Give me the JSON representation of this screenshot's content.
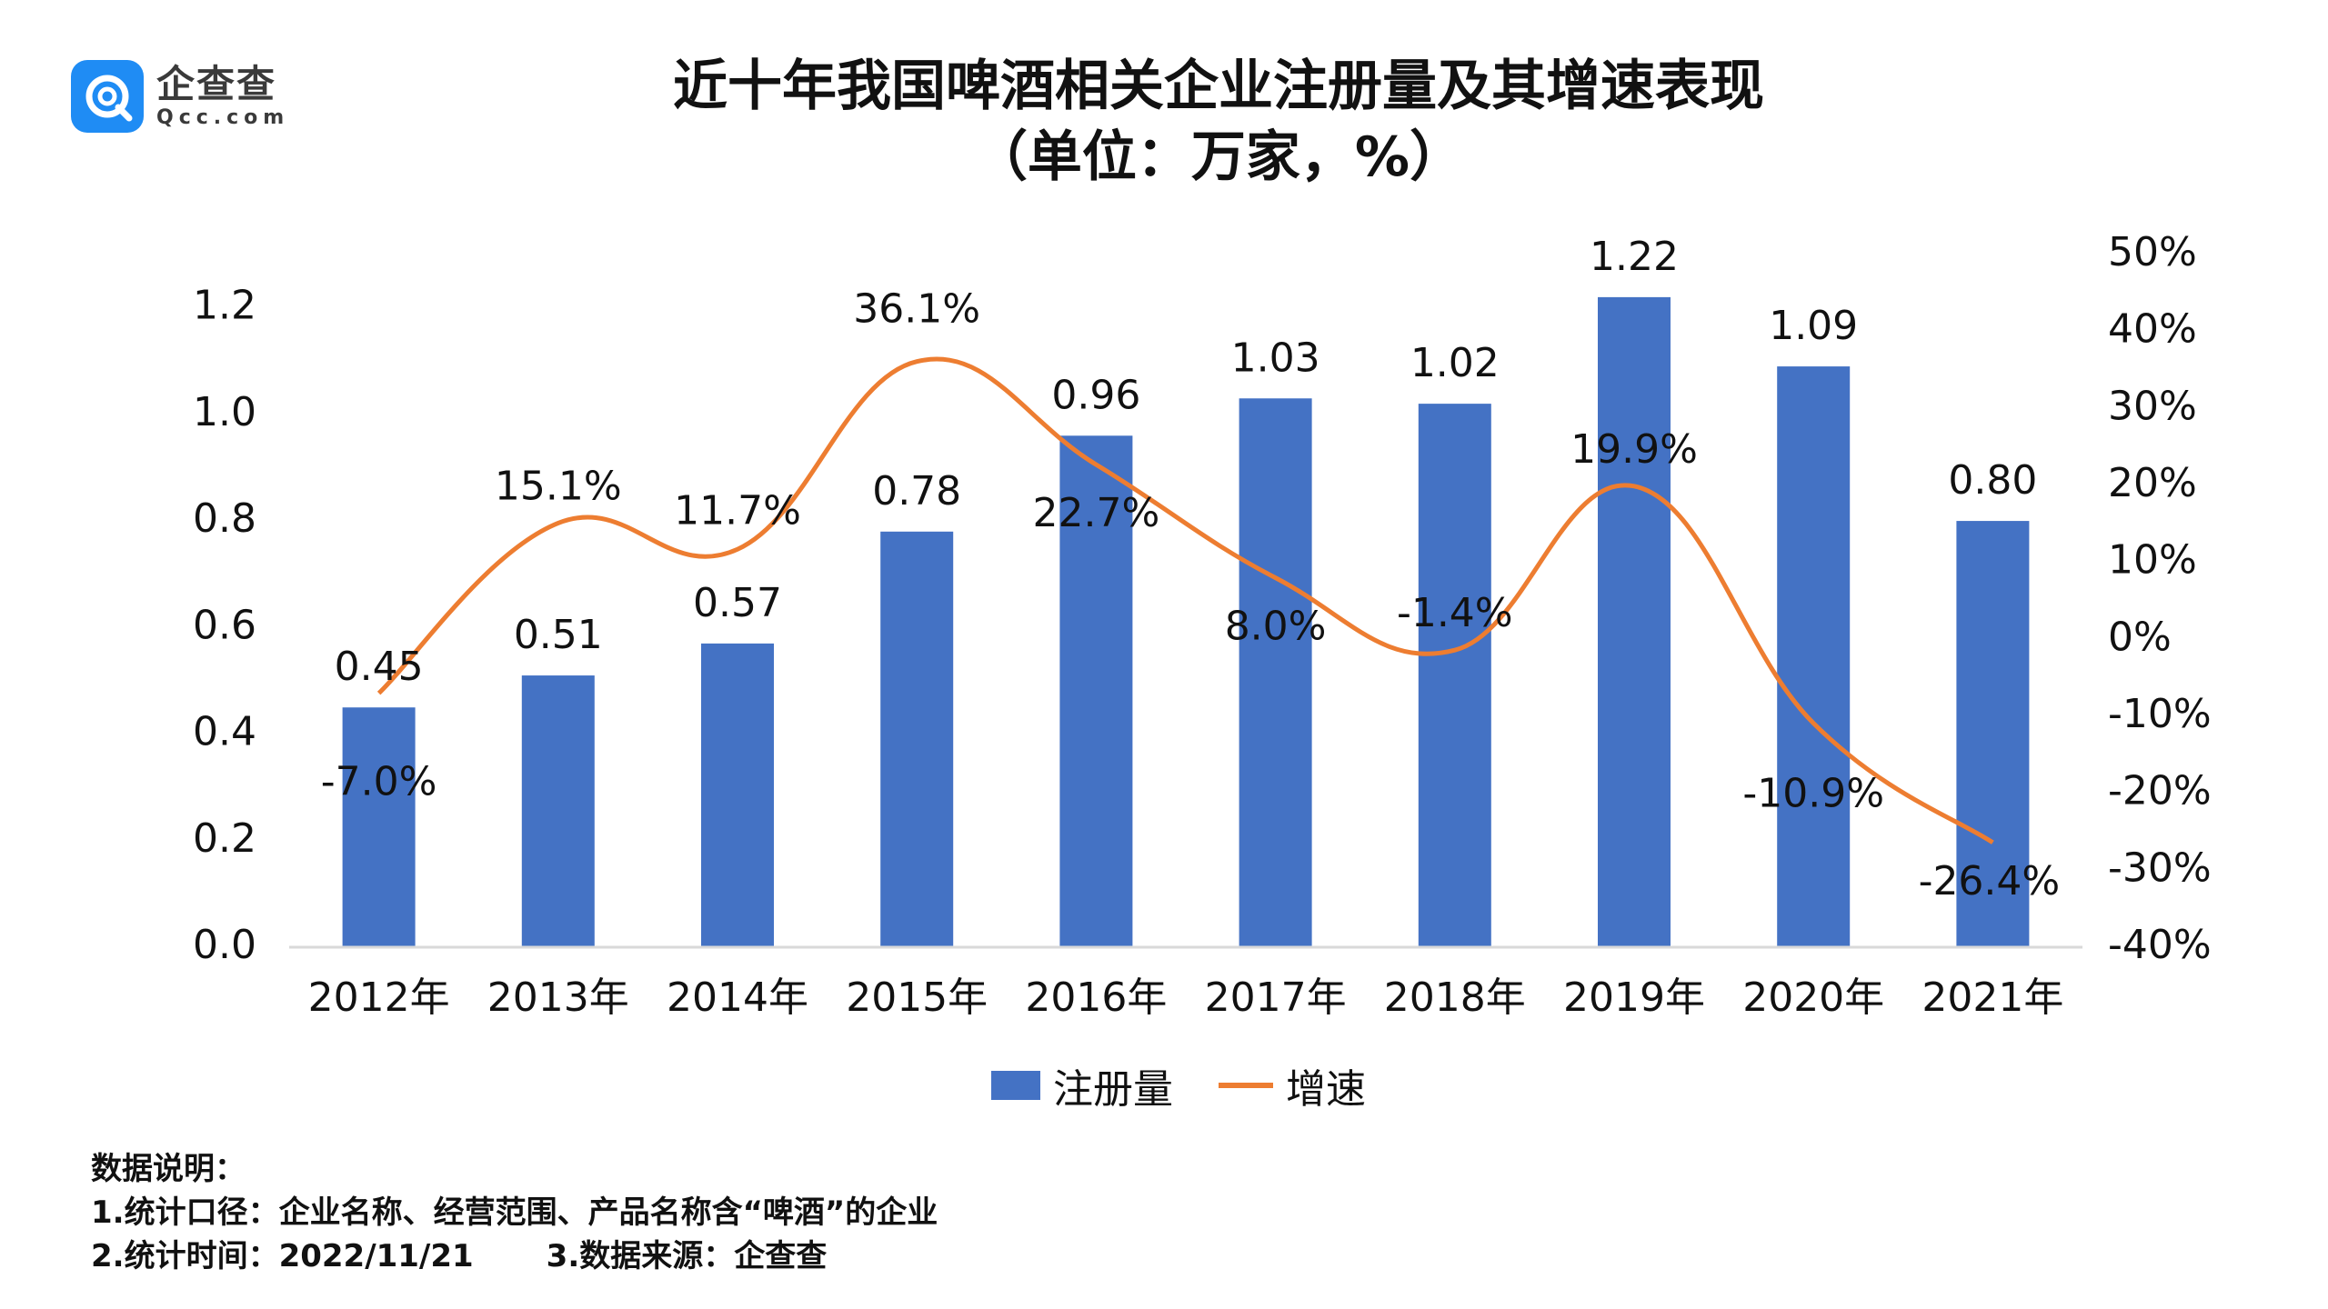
{
  "logo": {
    "cn": "企查查",
    "en": "Qcc.com",
    "icon": "qcc-logo-icon"
  },
  "title": {
    "line1": "近十年我国啤酒相关企业注册量及其增速表现",
    "line2": "（单位：万家，%）"
  },
  "legend": {
    "bar_label": "注册量",
    "line_label": "增速"
  },
  "notes": {
    "heading": "数据说明：",
    "item1": "1.统计口径：企业名称、经营范围、产品名称含“啤酒”的企业",
    "item2": "2.统计时间：2022/11/21",
    "item3": "3.数据来源：企查查"
  },
  "colors": {
    "bar": "#4472c4",
    "line": "#ed7d31",
    "axis": "#d9d9d9"
  },
  "chart_data": {
    "type": "bar+line",
    "title": "近十年我国啤酒相关企业注册量及其增速表现",
    "subtitle": "（单位：万家，%）",
    "categories": [
      "2012年",
      "2013年",
      "2014年",
      "2015年",
      "2016年",
      "2017年",
      "2018年",
      "2019年",
      "2020年",
      "2021年"
    ],
    "series": [
      {
        "name": "注册量",
        "type": "bar",
        "axis": "left",
        "values": [
          0.45,
          0.51,
          0.57,
          0.78,
          0.96,
          1.03,
          1.02,
          1.22,
          1.09,
          0.8
        ],
        "labels": [
          "0.45",
          "0.51",
          "0.57",
          "0.78",
          "0.96",
          "1.03",
          "1.02",
          "1.22",
          "1.09",
          "0.80"
        ]
      },
      {
        "name": "增速",
        "type": "line",
        "axis": "right",
        "values": [
          -7.0,
          15.1,
          11.7,
          36.1,
          22.7,
          8.0,
          -1.4,
          19.9,
          -10.9,
          -26.4
        ],
        "labels": [
          "-7.0%",
          "15.1%",
          "11.7%",
          "36.1%",
          "22.7%",
          "8.0%",
          "-1.4%",
          "19.9%",
          "-10.9%",
          "-26.4%"
        ]
      }
    ],
    "y_left": {
      "ylim": [
        0,
        1.3
      ],
      "ticks": [
        0.0,
        0.2,
        0.4,
        0.6,
        0.8,
        1.0,
        1.2
      ],
      "tick_labels": [
        "0.0",
        "0.2",
        "0.4",
        "0.6",
        "0.8",
        "1.0",
        "1.2"
      ]
    },
    "y_right": {
      "ylim": [
        -40,
        50
      ],
      "ticks": [
        -40,
        -30,
        -20,
        -10,
        0,
        10,
        20,
        30,
        40,
        50
      ],
      "tick_labels": [
        "-40%",
        "-30%",
        "-20%",
        "-10%",
        "0%",
        "10%",
        "20%",
        "30%",
        "40%",
        "50%"
      ]
    },
    "grid": false,
    "legend_position": "bottom"
  }
}
